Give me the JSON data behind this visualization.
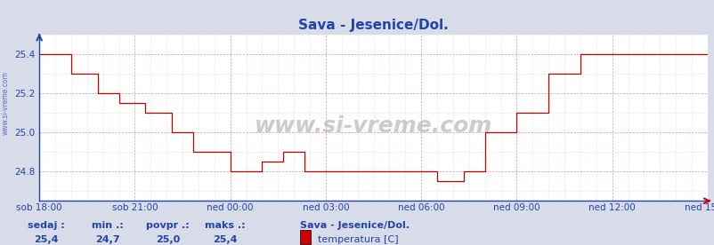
{
  "title": "Sava - Jesenice/Dol.",
  "title_color": "#2244aa",
  "bg_color": "#d8dce8",
  "plot_bg_color": "#ffffff",
  "line_color": "#cc0000",
  "grid_color_major": "#cc8888",
  "grid_color_minor": "#eecccc",
  "x_labels": [
    "sob 18:00",
    "sob 21:00",
    "ned 00:00",
    "ned 03:00",
    "ned 06:00",
    "ned 09:00",
    "ned 12:00",
    "ned 15:00"
  ],
  "x_ticks_pos": [
    0,
    36,
    72,
    108,
    144,
    180,
    216,
    252
  ],
  "ylim": [
    24.65,
    25.47
  ],
  "yticks": [
    24.8,
    25.0,
    25.2,
    25.4
  ],
  "ylabel_color": "#2244aa",
  "watermark": "www.si-vreme.com",
  "footer_labels": [
    "sedaj :",
    "min .:",
    "povpr .:",
    "maks .:"
  ],
  "footer_values": [
    "25,4",
    "24,7",
    "25,0",
    "25,4"
  ],
  "footer_station": "Sava - Jesenice/Dol.",
  "footer_legend": "temperatura [C]",
  "legend_color": "#cc0000",
  "step_data_x": [
    0,
    6,
    12,
    18,
    22,
    26,
    30,
    36,
    40,
    44,
    50,
    54,
    58,
    66,
    72,
    78,
    84,
    88,
    92,
    96,
    100,
    108,
    112,
    116,
    120,
    128,
    144,
    150,
    156,
    160,
    164,
    168,
    172,
    180,
    186,
    192,
    198,
    204,
    210,
    216,
    252
  ],
  "step_data_y": [
    25.4,
    25.4,
    25.3,
    25.3,
    25.2,
    25.2,
    25.15,
    25.15,
    25.1,
    25.1,
    25.0,
    25.0,
    24.9,
    24.9,
    24.8,
    24.8,
    24.85,
    24.85,
    24.9,
    24.9,
    24.8,
    24.8,
    24.8,
    24.8,
    24.8,
    24.8,
    24.8,
    24.75,
    24.75,
    24.8,
    24.8,
    25.0,
    25.0,
    25.1,
    25.1,
    25.3,
    25.3,
    25.4,
    25.4,
    25.4,
    25.4
  ],
  "sidebar_text": "www.si-vreme.com",
  "sidebar_color": "#2244aa"
}
